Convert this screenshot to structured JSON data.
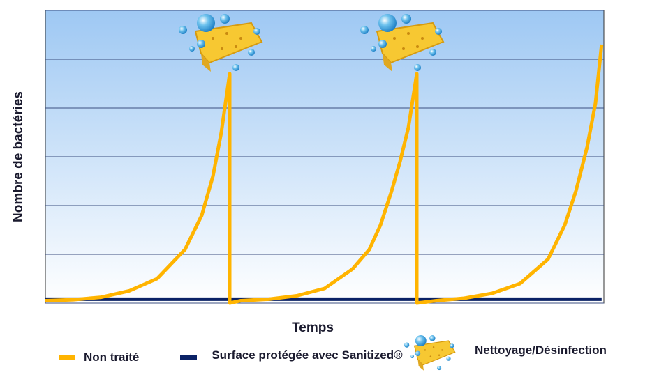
{
  "chart_data": {
    "type": "line",
    "y_label": "Nombre de bactéries",
    "x_label": "Temps",
    "xlim": [
      0,
      10
    ],
    "ylim": [
      0,
      6
    ],
    "yticks": [
      0,
      1,
      2,
      3,
      4,
      5,
      6
    ],
    "grid": true,
    "series": [
      {
        "name": "Non traité",
        "color": "#ffb400",
        "x": [
          0,
          0.5,
          1,
          1.5,
          2,
          2.5,
          2.8,
          3.0,
          3.15,
          3.3,
          3.3,
          3.5,
          4,
          4.5,
          5,
          5.5,
          5.8,
          6,
          6.2,
          6.35,
          6.5,
          6.65,
          6.65,
          7,
          7.5,
          8,
          8.5,
          9,
          9.3,
          9.5,
          9.7,
          9.85,
          9.96
        ],
        "values": [
          0.05,
          0.07,
          0.12,
          0.25,
          0.5,
          1.1,
          1.8,
          2.6,
          3.5,
          4.7,
          0,
          0.05,
          0.08,
          0.15,
          0.3,
          0.7,
          1.1,
          1.6,
          2.3,
          2.9,
          3.6,
          4.7,
          0,
          0.05,
          0.1,
          0.2,
          0.4,
          0.9,
          1.6,
          2.3,
          3.2,
          4.1,
          5.3
        ]
      },
      {
        "name": "Surface protégée avec Sanitized®",
        "color": "#0b2266",
        "x": [
          0,
          1,
          2,
          3,
          4,
          5,
          6,
          7,
          8,
          9,
          9.96
        ],
        "values": [
          0.08,
          0.08,
          0.08,
          0.08,
          0.08,
          0.08,
          0.08,
          0.08,
          0.08,
          0.08,
          0.08
        ]
      }
    ],
    "event_label": "Nettoyage/Désinfection"
  }
}
